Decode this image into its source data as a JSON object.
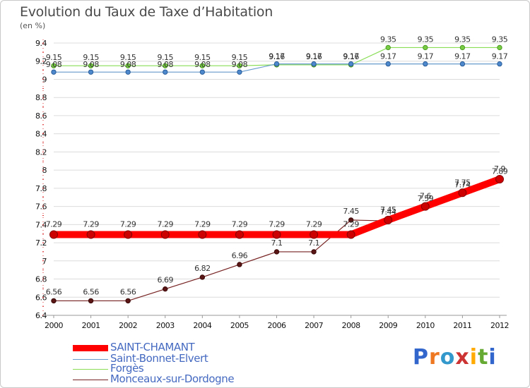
{
  "header": {
    "title": "Evolution du Taux de Taxe d’Habitation",
    "unit": "(en %)"
  },
  "logo": {
    "text": "Proxiti"
  },
  "chart_data": {
    "type": "line",
    "title": "Evolution du Taux de Taxe d’Habitation",
    "ylabel": "(en %)",
    "xlabel": "",
    "ylim": [
      6.4,
      9.4
    ],
    "yticks": [
      6.4,
      6.6,
      6.8,
      7,
      7.2,
      7.4,
      7.6,
      7.8,
      8,
      8.2,
      8.4,
      8.6,
      8.8,
      9,
      9.2,
      9.4
    ],
    "ytick_labels": [
      "6.4",
      "6.6",
      "6.8",
      "7",
      "7.2",
      "7.4",
      "7.6",
      "7.8",
      "8",
      "8.2",
      "8.4",
      "8.6",
      "8.8",
      "9",
      "9.2",
      "9.4"
    ],
    "x": [
      "2000",
      "2001",
      "2002",
      "2003",
      "2004",
      "2005",
      "2006",
      "2007",
      "2008",
      "2009",
      "2010",
      "2011",
      "2012"
    ],
    "grid": "horizontal",
    "legend_position": "bottom-left",
    "series": [
      {
        "name": "SAINT-CHAMANT",
        "color": "#ff0000",
        "values": [
          7.29,
          7.29,
          7.29,
          7.29,
          7.29,
          7.29,
          7.29,
          7.29,
          7.29,
          7.45,
          7.6,
          7.75,
          7.9
        ],
        "labels": [
          "7.29",
          "7.29",
          "7.29",
          "7.29",
          "7.29",
          "7.29",
          "7.29",
          "7.29",
          "7.29",
          "7.45",
          "7.6",
          "7.75",
          "7.9"
        ]
      },
      {
        "name": "Saint-Bonnet-Elvert",
        "color": "#6699cc",
        "values": [
          9.08,
          9.08,
          9.08,
          9.08,
          9.08,
          9.08,
          9.17,
          9.17,
          9.17,
          9.17,
          9.17,
          9.17,
          9.17
        ],
        "labels": [
          "9.08",
          "9.08",
          "9.08",
          "9.08",
          "9.08",
          "9.08",
          "9.17",
          "9.17",
          "9.17",
          "9.17",
          "9.17",
          "9.17",
          "9.17"
        ]
      },
      {
        "name": "Forgès",
        "color": "#88dd55",
        "values": [
          9.15,
          9.15,
          9.15,
          9.15,
          9.15,
          9.15,
          9.16,
          9.16,
          9.16,
          9.35,
          9.35,
          9.35,
          9.35
        ],
        "labels": [
          "9.15",
          "9.15",
          "9.15",
          "9.15",
          "9.15",
          "9.15",
          "9.16",
          "9.16",
          "9.16",
          "9.35",
          "9.35",
          "9.35",
          "9.35"
        ]
      },
      {
        "name": "Monceaux-sur-Dordogne",
        "color": "#772222",
        "values": [
          6.56,
          6.56,
          6.56,
          6.69,
          6.82,
          6.96,
          7.1,
          7.1,
          7.45,
          7.44,
          7.59,
          7.74,
          7.89
        ],
        "labels": [
          "6.56",
          "6.56",
          "6.56",
          "6.69",
          "6.82",
          "6.96",
          "7.1",
          "7.1",
          "7.45",
          "7.44",
          "7.59",
          "7.74",
          "7.89"
        ]
      }
    ]
  }
}
